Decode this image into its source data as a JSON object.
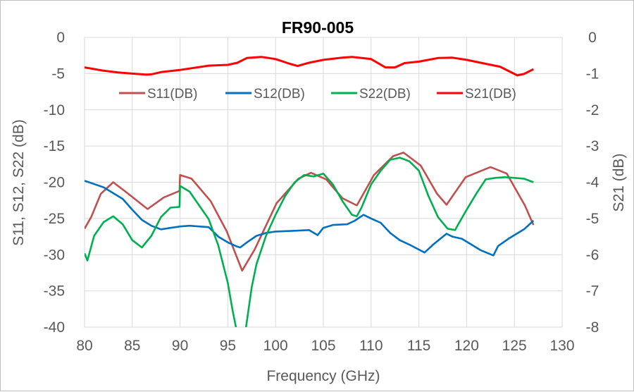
{
  "chart_data": {
    "type": "line",
    "title": "FR90-005",
    "xlabel": "Frequency (GHz)",
    "ylabel": "S11, S12, S22 (dB)",
    "y2label": "S21 (dB)",
    "xlim": [
      80,
      130
    ],
    "ylim": [
      -40,
      0
    ],
    "y2lim": [
      -8,
      0
    ],
    "xticks": [
      80,
      85,
      90,
      95,
      100,
      105,
      110,
      115,
      120,
      125,
      130
    ],
    "yticks": [
      0,
      -5,
      -10,
      -15,
      -20,
      -25,
      -30,
      -35,
      -40
    ],
    "y2ticks": [
      0,
      -1,
      -2,
      -3,
      -4,
      -5,
      -6,
      -7,
      -8
    ],
    "grid": true,
    "legend_position": "top-center",
    "series": [
      {
        "name": "S11(DB)",
        "color": "#c0504d",
        "axis": "left",
        "x": [
          80,
          80.7,
          81.7,
          83,
          84.3,
          86.6,
          88.3,
          89.95,
          90,
          91.2,
          93.2,
          94.9,
          96.5,
          97.8,
          100.1,
          102.4,
          103.7,
          105.3,
          107,
          108.5,
          110.3,
          112.3,
          113.4,
          115.2,
          116.9,
          117.9,
          119.9,
          122.5,
          124.2,
          126.1,
          127
        ],
        "y": [
          -26.4,
          -24.8,
          -21.6,
          -20.0,
          -21.3,
          -23.7,
          -22.1,
          -21.2,
          -19.0,
          -19.5,
          -22.6,
          -26.8,
          -32.2,
          -29.3,
          -22.9,
          -19.5,
          -18.7,
          -19.6,
          -22.2,
          -23.2,
          -19.0,
          -16.4,
          -15.9,
          -17.7,
          -21.6,
          -23.1,
          -19.3,
          -17.9,
          -18.8,
          -23.2,
          -25.9
        ]
      },
      {
        "name": "S12(DB)",
        "color": "#0070c0",
        "axis": "left",
        "x": [
          80,
          82,
          84,
          85,
          86,
          87,
          88,
          89,
          90,
          91,
          92,
          93,
          94,
          95,
          96,
          96.3,
          97,
          98,
          99,
          100,
          102,
          103.5,
          104.4,
          105,
          106,
          107.5,
          108.3,
          109.2,
          110,
          111,
          112,
          113,
          114,
          115.6,
          116.5,
          117.9,
          118.5,
          119.5,
          120.5,
          121.5,
          122.8,
          123.3,
          124.5,
          126,
          127
        ],
        "y": [
          -19.8,
          -20.7,
          -22.3,
          -23.8,
          -25.2,
          -26.0,
          -26.5,
          -26.3,
          -26.1,
          -26.0,
          -26.1,
          -26.2,
          -27.5,
          -28.3,
          -28.9,
          -29.0,
          -28.3,
          -27.4,
          -27.0,
          -26.8,
          -26.7,
          -26.6,
          -27.3,
          -26.3,
          -25.9,
          -25.8,
          -25.3,
          -24.5,
          -25.0,
          -25.6,
          -27.0,
          -28.0,
          -28.6,
          -29.7,
          -28.6,
          -27.1,
          -27.5,
          -27.8,
          -28.6,
          -29.4,
          -30.1,
          -28.8,
          -27.7,
          -26.5,
          -25.3
        ]
      },
      {
        "name": "S22(DB)",
        "color": "#00b050",
        "axis": "left",
        "x": [
          80,
          80.3,
          81,
          82,
          83,
          84,
          85,
          86,
          87,
          88,
          89,
          89.95,
          90,
          91,
          92,
          93,
          94,
          95,
          95.5,
          96,
          96.8,
          97.5,
          98,
          99,
          100,
          101,
          102,
          103,
          104,
          105,
          106,
          107,
          108,
          108.5,
          109,
          110,
          111,
          112,
          113,
          114,
          115,
          116,
          117,
          118,
          118.8,
          119,
          120,
          121,
          122,
          123,
          124,
          125,
          126,
          127
        ],
        "y": [
          -29.8,
          -30.8,
          -27.4,
          -25.5,
          -24.7,
          -25.8,
          -28.0,
          -29.0,
          -27.4,
          -24.8,
          -23.5,
          -23.4,
          -20.5,
          -21.3,
          -23.2,
          -25.1,
          -28.7,
          -33.9,
          -37.7,
          -41,
          -41,
          -34.5,
          -31.3,
          -27.4,
          -24.5,
          -21.9,
          -20.0,
          -19.0,
          -19.2,
          -18.8,
          -20.3,
          -22.6,
          -24.5,
          -24.7,
          -23.5,
          -20.3,
          -18.4,
          -16.9,
          -16.6,
          -17.1,
          -18.4,
          -21.9,
          -24.8,
          -26.4,
          -26.6,
          -26.1,
          -23.8,
          -21.6,
          -19.6,
          -19.4,
          -19.3,
          -19.4,
          -19.5,
          -20.0
        ]
      },
      {
        "name": "S21(DB)",
        "color": "#ff0000",
        "axis": "right",
        "x": [
          80,
          82,
          83.5,
          85,
          86.5,
          87,
          88,
          90,
          91,
          93,
          95,
          96,
          97,
          98.5,
          100,
          101.5,
          102.3,
          103.5,
          105,
          107,
          108,
          110,
          111.5,
          112.5,
          113.5,
          115,
          117,
          118.5,
          120,
          122,
          123.5,
          125.3,
          126,
          127
        ],
        "y": [
          -0.83,
          -0.92,
          -0.97,
          -1.0,
          -1.03,
          -1.02,
          -0.96,
          -0.9,
          -0.86,
          -0.78,
          -0.76,
          -0.7,
          -0.57,
          -0.54,
          -0.6,
          -0.73,
          -0.79,
          -0.7,
          -0.62,
          -0.56,
          -0.54,
          -0.6,
          -0.83,
          -0.83,
          -0.71,
          -0.67,
          -0.57,
          -0.56,
          -0.62,
          -0.73,
          -0.81,
          -1.05,
          -1.01,
          -0.88
        ]
      }
    ]
  }
}
